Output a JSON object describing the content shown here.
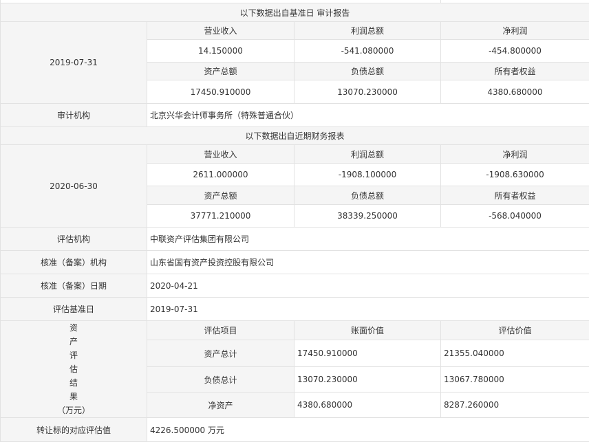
{
  "audit_section": {
    "title": "以下数据出自基准日 审计报告",
    "date": "2019-07-31",
    "headers1": [
      "营业收入",
      "利润总额",
      "净利润"
    ],
    "values1": [
      "14.150000",
      "-541.080000",
      "-454.800000"
    ],
    "headers2": [
      "资产总额",
      "负债总额",
      "所有者权益"
    ],
    "values2": [
      "17450.910000",
      "13070.230000",
      "4380.680000"
    ],
    "auditor_label": "审计机构",
    "auditor_value": "北京兴华会计师事务所（特殊普通合伙）"
  },
  "recent_section": {
    "title": "以下数据出自近期财务报表",
    "date": "2020-06-30",
    "headers1": [
      "营业收入",
      "利润总额",
      "净利润"
    ],
    "values1": [
      "2611.000000",
      "-1908.100000",
      "-1908.630000"
    ],
    "headers2": [
      "资产总额",
      "负债总额",
      "所有者权益"
    ],
    "values2": [
      "37771.210000",
      "38339.250000",
      "-568.040000"
    ]
  },
  "info": [
    {
      "label": "评估机构",
      "value": "中联资产评估集团有限公司"
    },
    {
      "label": "核准（备案）机构",
      "value": "山东省国有资产投资控股有限公司"
    },
    {
      "label": "核准（备案）日期",
      "value": "2020-04-21"
    },
    {
      "label": "评估基准日",
      "value": "2019-07-31"
    }
  ],
  "valuation": {
    "label": "资产评估结果（万元）",
    "label_lines": [
      "资",
      "产",
      "评",
      "估",
      "结",
      "果",
      "（万元）"
    ],
    "headers": [
      "评估项目",
      "账面价值",
      "评估价值"
    ],
    "rows": [
      [
        "资产总计",
        "17450.910000",
        "21355.040000"
      ],
      [
        "负债总计",
        "13070.230000",
        "13067.780000"
      ],
      [
        "净资产",
        "4380.680000",
        "8287.260000"
      ]
    ]
  },
  "transfer": {
    "label": "转让标的对应评估值",
    "value": "4226.500000 万元"
  }
}
